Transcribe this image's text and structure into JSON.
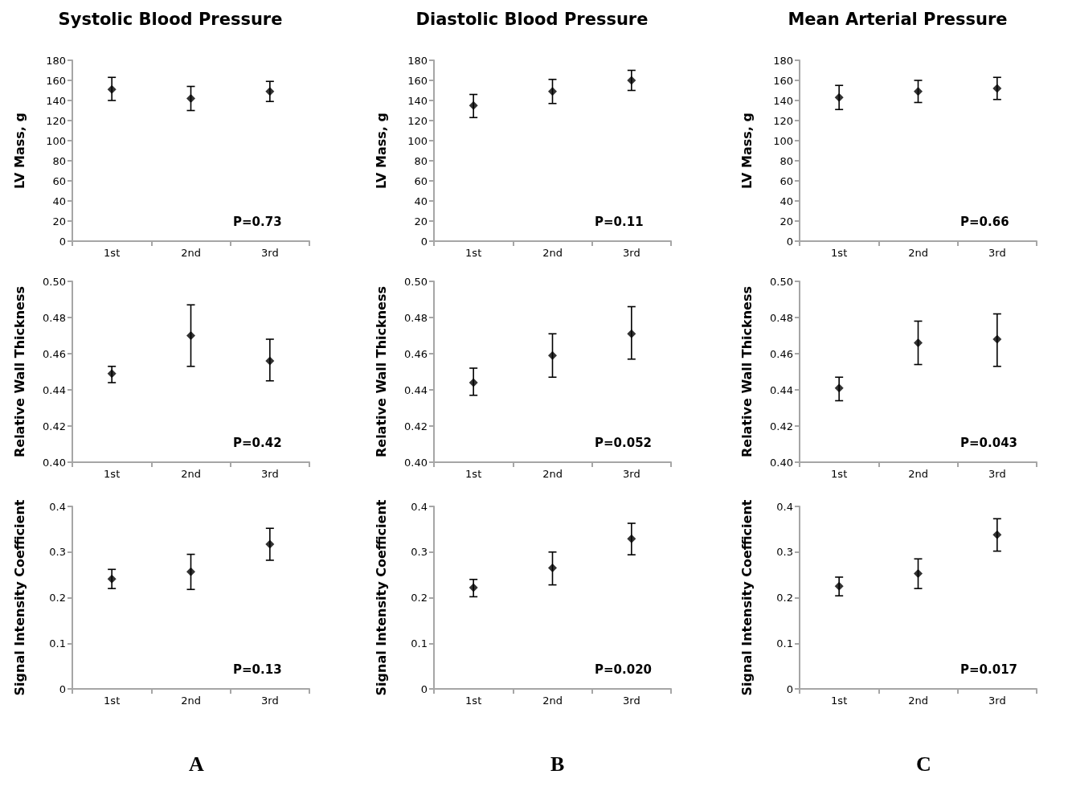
{
  "chart_data": [
    {
      "type": "scatter",
      "title": "Systolic Blood Pressure",
      "ylabel": "LV Mass, g",
      "categories": [
        "1st",
        "2nd",
        "3rd"
      ],
      "values": [
        151,
        142,
        149
      ],
      "errors": [
        [
          140,
          163
        ],
        [
          130,
          154
        ],
        [
          139,
          159
        ]
      ],
      "color": "#000000",
      "marker": "diamond",
      "ylim": [
        0,
        180
      ],
      "yticks": [
        0,
        20,
        40,
        60,
        80,
        100,
        120,
        140,
        160,
        180
      ],
      "grid": false,
      "annotations": [
        "P=0.73"
      ]
    },
    {
      "type": "scatter",
      "title": "Diastolic Blood Pressure",
      "ylabel": "LV Mass, g",
      "categories": [
        "1st",
        "2nd",
        "3rd"
      ],
      "values": [
        135,
        149,
        160
      ],
      "errors": [
        [
          123,
          146
        ],
        [
          137,
          161
        ],
        [
          150,
          170
        ]
      ],
      "color": "#000000",
      "marker": "diamond",
      "ylim": [
        0,
        180
      ],
      "yticks": [
        0,
        20,
        40,
        60,
        80,
        100,
        120,
        140,
        160,
        180
      ],
      "grid": false,
      "annotations": [
        "P=0.11"
      ]
    },
    {
      "type": "scatter",
      "title": "Mean Arterial Pressure",
      "ylabel": "LV Mass, g",
      "categories": [
        "1st",
        "2nd",
        "3rd"
      ],
      "values": [
        143,
        149,
        152
      ],
      "errors": [
        [
          131,
          155
        ],
        [
          138,
          160
        ],
        [
          141,
          163
        ]
      ],
      "color": "#000000",
      "marker": "diamond",
      "ylim": [
        0,
        180
      ],
      "yticks": [
        0,
        20,
        40,
        60,
        80,
        100,
        120,
        140,
        160,
        180
      ],
      "grid": false,
      "annotations": [
        "P=0.66"
      ]
    },
    {
      "type": "scatter",
      "ylabel": "Relative Wall Thickness",
      "categories": [
        "1st",
        "2nd",
        "3rd"
      ],
      "values": [
        0.449,
        0.47,
        0.456
      ],
      "errors": [
        [
          0.444,
          0.453
        ],
        [
          0.453,
          0.487
        ],
        [
          0.445,
          0.468
        ]
      ],
      "color": "#000000",
      "marker": "diamond",
      "ylim": [
        0.4,
        0.5
      ],
      "yticks": [
        {
          "value": 0.4,
          "label": "0.40"
        },
        {
          "value": 0.42,
          "label": "0.42"
        },
        {
          "value": 0.44,
          "label": "0.44"
        },
        {
          "value": 0.46,
          "label": "0.46"
        },
        {
          "value": 0.48,
          "label": "0.48"
        },
        {
          "value": 0.5,
          "label": "0.50"
        }
      ],
      "grid": false,
      "annotations": [
        "P=0.42"
      ]
    },
    {
      "type": "scatter",
      "ylabel": "Relative Wall Thickness",
      "categories": [
        "1st",
        "2nd",
        "3rd"
      ],
      "values": [
        0.444,
        0.459,
        0.471
      ],
      "errors": [
        [
          0.437,
          0.452
        ],
        [
          0.447,
          0.471
        ],
        [
          0.457,
          0.486
        ]
      ],
      "color": "#000000",
      "marker": "diamond",
      "ylim": [
        0.4,
        0.5
      ],
      "yticks": [
        {
          "value": 0.4,
          "label": "0.40"
        },
        {
          "value": 0.42,
          "label": "0.42"
        },
        {
          "value": 0.44,
          "label": "0.44"
        },
        {
          "value": 0.46,
          "label": "0.46"
        },
        {
          "value": 0.48,
          "label": "0.48"
        },
        {
          "value": 0.5,
          "label": "0.50"
        }
      ],
      "grid": false,
      "annotations": [
        "P=0.052"
      ]
    },
    {
      "type": "scatter",
      "ylabel": "Relative Wall Thickness",
      "categories": [
        "1st",
        "2nd",
        "3rd"
      ],
      "values": [
        0.441,
        0.466,
        0.468
      ],
      "errors": [
        [
          0.434,
          0.447
        ],
        [
          0.454,
          0.478
        ],
        [
          0.453,
          0.482
        ]
      ],
      "color": "#000000",
      "marker": "diamond",
      "ylim": [
        0.4,
        0.5
      ],
      "yticks": [
        {
          "value": 0.4,
          "label": "0.40"
        },
        {
          "value": 0.42,
          "label": "0.42"
        },
        {
          "value": 0.44,
          "label": "0.44"
        },
        {
          "value": 0.46,
          "label": "0.46"
        },
        {
          "value": 0.48,
          "label": "0.48"
        },
        {
          "value": 0.5,
          "label": "0.50"
        }
      ],
      "grid": false,
      "annotations": [
        "P=0.043"
      ]
    },
    {
      "type": "scatter",
      "ylabel": "Signal Intensity Coefficient",
      "categories": [
        "1st",
        "2nd",
        "3rd"
      ],
      "values": [
        0.241,
        0.257,
        0.317
      ],
      "errors": [
        [
          0.22,
          0.262
        ],
        [
          0.218,
          0.295
        ],
        [
          0.282,
          0.352
        ]
      ],
      "color": "#000000",
      "marker": "diamond",
      "ylim": [
        0,
        0.4
      ],
      "yticks": [
        0,
        0.1,
        0.2,
        0.3,
        0.4
      ],
      "grid": false,
      "annotations": [
        "P=0.13",
        "A"
      ]
    },
    {
      "type": "scatter",
      "ylabel": "Signal Intensity Coefficient",
      "categories": [
        "1st",
        "2nd",
        "3rd"
      ],
      "values": [
        0.222,
        0.265,
        0.329
      ],
      "errors": [
        [
          0.202,
          0.24
        ],
        [
          0.228,
          0.3
        ],
        [
          0.294,
          0.363
        ]
      ],
      "color": "#000000",
      "marker": "diamond",
      "ylim": [
        0,
        0.4
      ],
      "yticks": [
        0,
        0.1,
        0.2,
        0.3,
        0.4
      ],
      "grid": false,
      "annotations": [
        "P=0.020",
        "B"
      ]
    },
    {
      "type": "scatter",
      "ylabel": "Signal Intensity Coefficient",
      "categories": [
        "1st",
        "2nd",
        "3rd"
      ],
      "values": [
        0.225,
        0.253,
        0.338
      ],
      "errors": [
        [
          0.204,
          0.245
        ],
        [
          0.22,
          0.285
        ],
        [
          0.302,
          0.373
        ]
      ],
      "color": "#000000",
      "marker": "diamond",
      "ylim": [
        0,
        0.4
      ],
      "yticks": [
        0,
        0.1,
        0.2,
        0.3,
        0.4
      ],
      "grid": false,
      "annotations": [
        "P=0.017",
        "C"
      ]
    }
  ]
}
